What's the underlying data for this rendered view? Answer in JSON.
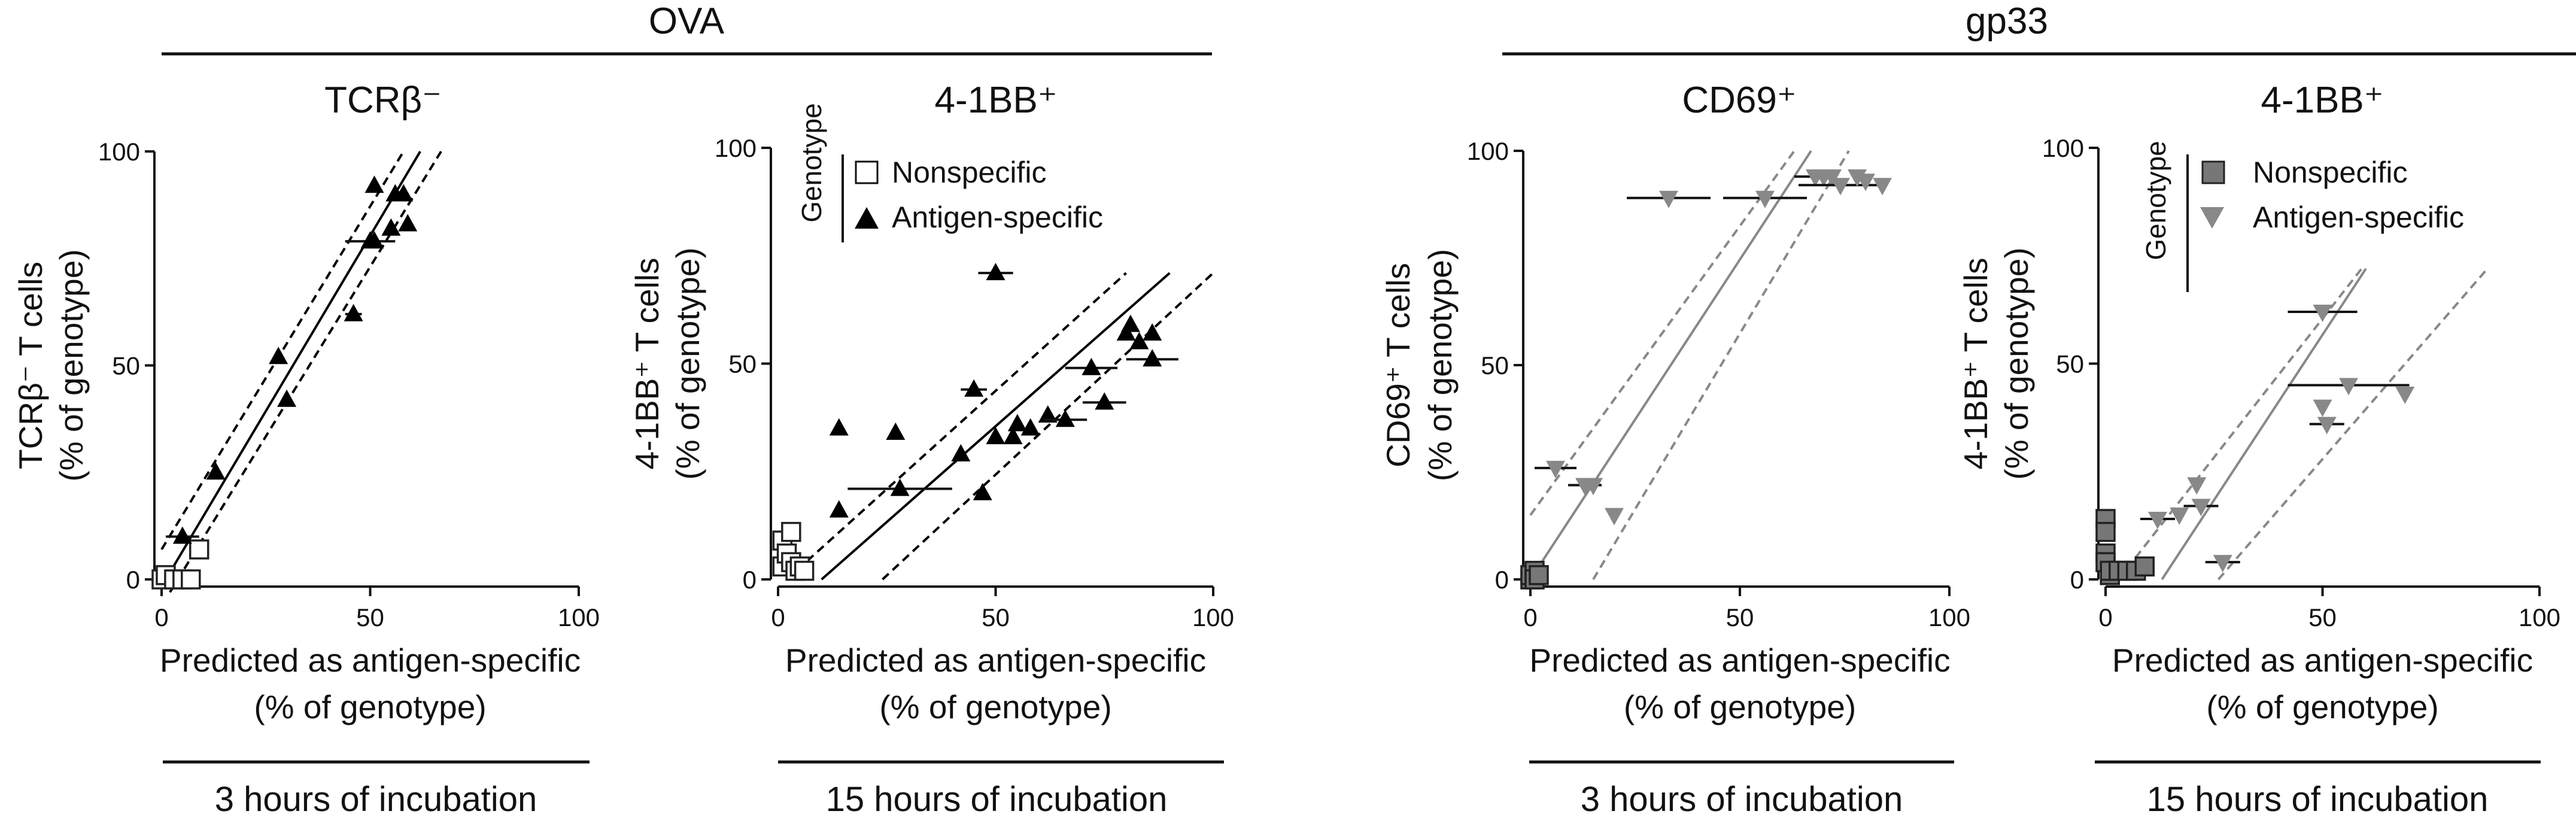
{
  "groups": [
    {
      "title": "OVA"
    },
    {
      "title": "gp33"
    }
  ],
  "footers": [
    "3 hours of incubation",
    "15 hours of incubation",
    "3 hours of incubation",
    "15 hours of incubation"
  ],
  "legends": [
    {
      "title": "Genotype",
      "entries": [
        "Nonspecific",
        "Antigen-specific"
      ]
    },
    {
      "title": "Genotype",
      "entries": [
        "Nonspecific",
        "Antigen-specific"
      ]
    }
  ],
  "colors": {
    "ova_specific": "#000000",
    "ova_nonspecific": "#ffffff",
    "gp33_specific": "#888888",
    "gp33_nonspecific": "#777777",
    "fit_ova": "#000000",
    "fit_gp33": "#888888"
  },
  "chart_data": [
    {
      "type": "scatter",
      "title": "TCRβ⁻",
      "xlabel": [
        "Predicted as antigen-specific",
        "(% of genotype)"
      ],
      "ylabel": [
        "TCRβ⁻ T cells",
        "(% of genotype)"
      ],
      "xlim": [
        0,
        100
      ],
      "ylim": [
        0,
        100
      ],
      "xticks": [
        0,
        50,
        100
      ],
      "yticks": [
        0,
        50,
        100
      ],
      "series": [
        {
          "name": "Nonspecific",
          "marker": "square",
          "color": "#ffffff",
          "points": [
            [
              0,
              0
            ],
            [
              1,
              1
            ],
            [
              3,
              0
            ],
            [
              5,
              0
            ],
            [
              7,
              0
            ],
            [
              9,
              7
            ]
          ]
        },
        {
          "name": "Antigen-specific",
          "marker": "triangle-up",
          "color": "#000000",
          "points": [
            [
              5,
              10,
              4
            ],
            [
              13,
              25,
              0
            ],
            [
              28,
              52,
              0
            ],
            [
              30,
              42,
              0
            ],
            [
              46,
              62,
              2
            ],
            [
              50,
              79,
              6
            ],
            [
              51,
              92,
              0
            ],
            [
              51,
              79,
              0
            ],
            [
              55,
              82,
              0
            ],
            [
              56,
              90,
              0
            ],
            [
              58,
              90,
              0
            ],
            [
              59,
              83,
              0
            ]
          ]
        }
      ],
      "fit": {
        "x1": 1,
        "x2": 62,
        "y1": 0,
        "y2": 100
      },
      "ci": [
        {
          "x1": 0,
          "x2": 58,
          "y1": 7,
          "y2": 100
        },
        {
          "x1": 2,
          "x2": 67,
          "y1": -3,
          "y2": 100
        }
      ]
    },
    {
      "type": "scatter",
      "title": "4-1BB⁺",
      "xlabel": [
        "Predicted as antigen-specific",
        "(% of genotype)"
      ],
      "ylabel": [
        "4-1BB⁺ T cells",
        "(% of genotype)"
      ],
      "xlim": [
        0,
        100
      ],
      "ylim": [
        0,
        100
      ],
      "xticks": [
        0,
        50,
        100
      ],
      "yticks": [
        0,
        50,
        100
      ],
      "series": [
        {
          "name": "Nonspecific",
          "marker": "square",
          "color": "#ffffff",
          "points": [
            [
              1,
              9
            ],
            [
              1,
              3
            ],
            [
              2,
              6
            ],
            [
              3,
              11
            ],
            [
              3,
              4
            ],
            [
              4,
              2
            ],
            [
              5,
              3
            ],
            [
              6,
              2
            ]
          ]
        },
        {
          "name": "Antigen-specific",
          "marker": "triangle-up",
          "color": "#000000",
          "points": [
            [
              14,
              16,
              0
            ],
            [
              14,
              35,
              0
            ],
            [
              27,
              34,
              0
            ],
            [
              28,
              21,
              12
            ],
            [
              42,
              29,
              0
            ],
            [
              45,
              44,
              3
            ],
            [
              47,
              20,
              0
            ],
            [
              50,
              71,
              4
            ],
            [
              50,
              33,
              0
            ],
            [
              54,
              33,
              0
            ],
            [
              55,
              36,
              0
            ],
            [
              58,
              35,
              0
            ],
            [
              62,
              38,
              0
            ],
            [
              66,
              37,
              5
            ],
            [
              72,
              49,
              6
            ],
            [
              75,
              41,
              5
            ],
            [
              80,
              57,
              0
            ],
            [
              81,
              59,
              0
            ],
            [
              83,
              55,
              0
            ],
            [
              86,
              57,
              0
            ],
            [
              86,
              51,
              6
            ]
          ]
        }
      ],
      "fit": {
        "x1": 10,
        "x2": 90,
        "y1": 0,
        "y2": 71
      },
      "ci": [
        {
          "x1": 2,
          "x2": 80,
          "y1": 0,
          "y2": 71
        },
        {
          "x1": 24,
          "x2": 100,
          "y1": 0,
          "y2": 71
        }
      ]
    },
    {
      "type": "scatter",
      "title": "CD69⁺",
      "xlabel": [
        "Predicted as antigen-specific",
        "(% of genotype)"
      ],
      "ylabel": [
        "CD69⁺ T cells",
        "(% of genotype)"
      ],
      "xlim": [
        0,
        100
      ],
      "ylim": [
        0,
        100
      ],
      "xticks": [
        0,
        50,
        100
      ],
      "yticks": [
        0,
        50,
        100
      ],
      "series": [
        {
          "name": "Nonspecific",
          "marker": "square",
          "color": "#777777",
          "points": [
            [
              0,
              0
            ],
            [
              0,
              1
            ],
            [
              1,
              2
            ],
            [
              1,
              0
            ],
            [
              2,
              1
            ]
          ]
        },
        {
          "name": "Antigen-specific",
          "marker": "triangle-down",
          "color": "#888888",
          "points": [
            [
              6,
              26,
              5
            ],
            [
              13,
              22,
              4
            ],
            [
              15,
              22,
              0
            ],
            [
              20,
              15,
              0
            ],
            [
              33,
              89,
              10
            ],
            [
              56,
              89,
              10
            ],
            [
              68,
              94,
              5
            ],
            [
              70,
              94,
              0
            ],
            [
              72,
              94,
              0
            ],
            [
              74,
              92,
              10
            ],
            [
              78,
              94,
              0
            ],
            [
              80,
              93,
              0
            ],
            [
              84,
              92,
              0
            ]
          ]
        }
      ],
      "fit": {
        "x1": 0,
        "x2": 67,
        "y1": 0,
        "y2": 100
      },
      "ci": [
        {
          "x1": 0,
          "x2": 63,
          "y1": 15,
          "y2": 100
        },
        {
          "x1": 15,
          "x2": 76,
          "y1": 0,
          "y2": 100
        }
      ]
    },
    {
      "type": "scatter",
      "title": "4-1BB⁺",
      "xlabel": [
        "Predicted as antigen-specific",
        "(% of genotype)"
      ],
      "ylabel": [
        "4-1BB⁺ T cells",
        "(% of genotype)"
      ],
      "xlim": [
        0,
        100
      ],
      "ylim": [
        0,
        100
      ],
      "xticks": [
        0,
        50,
        100
      ],
      "yticks": [
        0,
        50,
        100
      ],
      "series": [
        {
          "name": "Nonspecific",
          "marker": "square",
          "color": "#777777",
          "points": [
            [
              0,
              6
            ],
            [
              0,
              4
            ],
            [
              0,
              14
            ],
            [
              0,
              11
            ],
            [
              1,
              1
            ],
            [
              1,
              2
            ],
            [
              3,
              2
            ],
            [
              5,
              2
            ],
            [
              7,
              2
            ],
            [
              9,
              3
            ]
          ]
        },
        {
          "name": "Antigen-specific",
          "marker": "triangle-down",
          "color": "#888888",
          "points": [
            [
              12,
              14,
              4
            ],
            [
              17,
              15,
              0
            ],
            [
              21,
              22,
              0
            ],
            [
              22,
              17,
              4
            ],
            [
              27,
              4,
              4
            ],
            [
              50,
              62,
              8
            ],
            [
              50,
              40,
              0
            ],
            [
              51,
              36,
              4
            ],
            [
              56,
              45,
              14
            ],
            [
              69,
              43,
              0
            ]
          ]
        }
      ],
      "fit": {
        "x1": 13,
        "x2": 60,
        "y1": 0,
        "y2": 72
      },
      "ci": [
        {
          "x1": 3,
          "x2": 59,
          "y1": 0,
          "y2": 72
        },
        {
          "x1": 26,
          "x2": 88,
          "y1": 0,
          "y2": 72
        }
      ]
    }
  ]
}
